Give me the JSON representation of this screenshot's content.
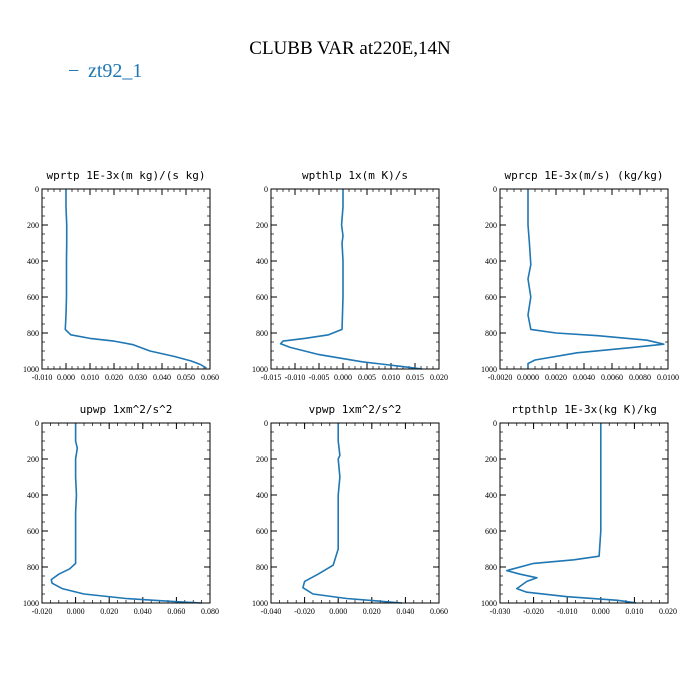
{
  "figure": {
    "title": "CLUBB VAR at220E,14N",
    "legend_label": "zt92_1",
    "legend_marker": "−",
    "series_color": "#1f77b4"
  },
  "chart_data": [
    {
      "type": "line",
      "title": "wprtp   1E-3x(m kg)/(s kg)",
      "xlim": [
        -0.01,
        0.06
      ],
      "ylim": [
        1000,
        0
      ],
      "x_ticks": [
        "-0.010",
        "0.000",
        "0.010",
        "0.020",
        "0.030",
        "0.040",
        "0.050",
        "0.060"
      ],
      "y_ticks": [
        "0",
        "200",
        "400",
        "600",
        "800",
        "1000"
      ],
      "x": [
        0.0,
        0.0,
        0.0003,
        0.0003,
        0.0002,
        0.0002,
        0.0002,
        0.0,
        -0.0003,
        0.002,
        0.01,
        0.02,
        0.028,
        0.035,
        0.045,
        0.052,
        0.056,
        0.0585
      ],
      "y": [
        0,
        100,
        200,
        300,
        400,
        500,
        600,
        700,
        780,
        810,
        830,
        845,
        865,
        900,
        930,
        955,
        975,
        995
      ]
    },
    {
      "type": "line",
      "title": "wpthlp   1x(m K)/s",
      "xlim": [
        -0.015,
        0.02
      ],
      "ylim": [
        1000,
        0
      ],
      "x_ticks": [
        "-0.015",
        "-0.010",
        "-0.005",
        "0.000",
        "0.005",
        "0.010",
        "0.015",
        "0.020"
      ],
      "y_ticks": [
        "0",
        "200",
        "400",
        "600",
        "800",
        "1000"
      ],
      "x": [
        0.0,
        0.0,
        -0.0003,
        0.0,
        -0.0002,
        0.0,
        0.0,
        0.0,
        -0.0002,
        -0.003,
        -0.008,
        -0.0125,
        -0.013,
        -0.011,
        -0.005,
        0.004,
        0.012,
        0.0165
      ],
      "y": [
        0,
        100,
        200,
        260,
        300,
        400,
        500,
        600,
        780,
        810,
        830,
        845,
        860,
        880,
        920,
        960,
        985,
        1000
      ]
    },
    {
      "type": "line",
      "title": "wprcp   1E-3x(m/s) (kg/kg)",
      "xlim": [
        -0.002,
        0.01
      ],
      "ylim": [
        1000,
        0
      ],
      "x_ticks": [
        "-0.0020",
        "0.0000",
        "0.0020",
        "0.0040",
        "0.0060",
        "0.0080",
        "0.0100"
      ],
      "y_ticks": [
        "0",
        "200",
        "400",
        "600",
        "800",
        "1000"
      ],
      "x": [
        0.0,
        0.0,
        0.0,
        0.0001,
        0.0002,
        0.0,
        0.0002,
        0.0,
        0.0002,
        0.002,
        0.005,
        0.0085,
        0.0097,
        0.0075,
        0.0035,
        0.0005,
        0.0,
        0.0
      ],
      "y": [
        0,
        100,
        200,
        300,
        420,
        500,
        600,
        700,
        780,
        800,
        815,
        840,
        862,
        880,
        910,
        950,
        970,
        1000
      ]
    },
    {
      "type": "line",
      "title": "upwp   1xm^2/s^2",
      "xlim": [
        -0.02,
        0.08
      ],
      "ylim": [
        1000,
        0
      ],
      "x_ticks": [
        "-0.020",
        "0.000",
        "0.020",
        "0.040",
        "0.060",
        "0.080"
      ],
      "y_ticks": [
        "0",
        "200",
        "400",
        "600",
        "800",
        "1000"
      ],
      "x": [
        0.0,
        0.0,
        0.001,
        0.0,
        0.0,
        0.0005,
        0.0,
        0.0,
        0.0,
        0.0,
        -0.0035,
        -0.01,
        -0.0145,
        -0.014,
        -0.008,
        0.005,
        0.03,
        0.055,
        0.075
      ],
      "y": [
        0,
        100,
        140,
        200,
        300,
        400,
        500,
        600,
        700,
        780,
        810,
        840,
        870,
        890,
        920,
        950,
        975,
        990,
        1000
      ]
    },
    {
      "type": "line",
      "title": "vpwp   1xm^2/s^2",
      "xlim": [
        -0.04,
        0.06
      ],
      "ylim": [
        1000,
        0
      ],
      "x_ticks": [
        "-0.040",
        "-0.020",
        "0.000",
        "0.020",
        "0.040",
        "0.060"
      ],
      "y_ticks": [
        "0",
        "200",
        "400",
        "600",
        "800",
        "1000"
      ],
      "x": [
        0.0,
        0.0,
        0.001,
        0.0,
        0.001,
        0.0,
        0.0,
        0.0,
        0.0,
        -0.003,
        -0.012,
        -0.02,
        -0.021,
        -0.015,
        0.005,
        0.025,
        0.038
      ],
      "y": [
        0,
        100,
        180,
        200,
        300,
        400,
        500,
        600,
        700,
        790,
        840,
        880,
        915,
        950,
        975,
        990,
        1000
      ]
    },
    {
      "type": "line",
      "title": "rtpthlp   1E-3x(kg K)/kg",
      "xlim": [
        -0.03,
        0.02
      ],
      "ylim": [
        1000,
        0
      ],
      "x_ticks": [
        "-0.030",
        "-0.020",
        "-0.010",
        "0.000",
        "0.010",
        "0.020"
      ],
      "y_ticks": [
        "0",
        "200",
        "400",
        "600",
        "800",
        "1000"
      ],
      "x": [
        0.0,
        0.0,
        0.0,
        0.0,
        0.0,
        0.0,
        0.0,
        -0.0005,
        -0.008,
        -0.02,
        -0.028,
        -0.024,
        -0.019,
        -0.022,
        -0.025,
        -0.022,
        -0.01,
        0.005,
        0.0105
      ],
      "y": [
        0,
        100,
        200,
        300,
        400,
        500,
        600,
        740,
        760,
        780,
        820,
        840,
        860,
        880,
        920,
        940,
        965,
        985,
        1000
      ]
    }
  ]
}
